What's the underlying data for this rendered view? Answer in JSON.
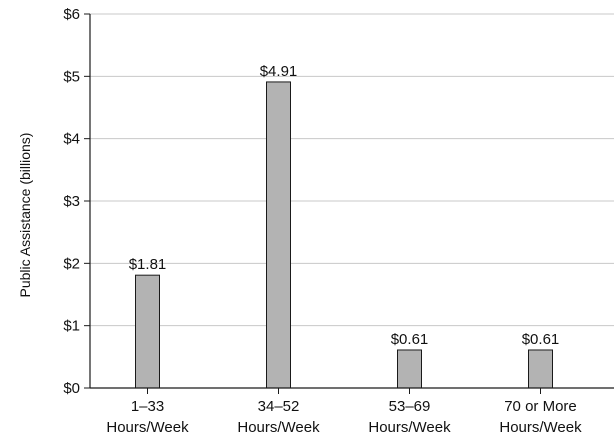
{
  "chart_data": {
    "type": "bar",
    "ylabel": "Public Assistance (billions)",
    "xlabel": "",
    "ylim": [
      0,
      6
    ],
    "yticks": [
      0,
      1,
      2,
      3,
      4,
      5,
      6
    ],
    "ytick_labels": [
      "$0",
      "$1",
      "$2",
      "$3",
      "$4",
      "$5",
      "$6"
    ],
    "categories": [
      [
        "1–33",
        "Hours/Week"
      ],
      [
        "34–52",
        "Hours/Week"
      ],
      [
        "53–69",
        "Hours/Week"
      ],
      [
        "70 or More",
        "Hours/Week"
      ]
    ],
    "values": [
      1.81,
      4.91,
      0.61,
      0.61
    ],
    "data_labels": [
      "$1.81",
      "$4.91",
      "$0.61",
      "$0.61"
    ],
    "grid": "horizontal",
    "colors": {
      "bar": "#b3b3b3",
      "bar_edge": "#1a1a1a",
      "grid": "#c8c8c8",
      "axis": "#1a1a1a"
    }
  }
}
